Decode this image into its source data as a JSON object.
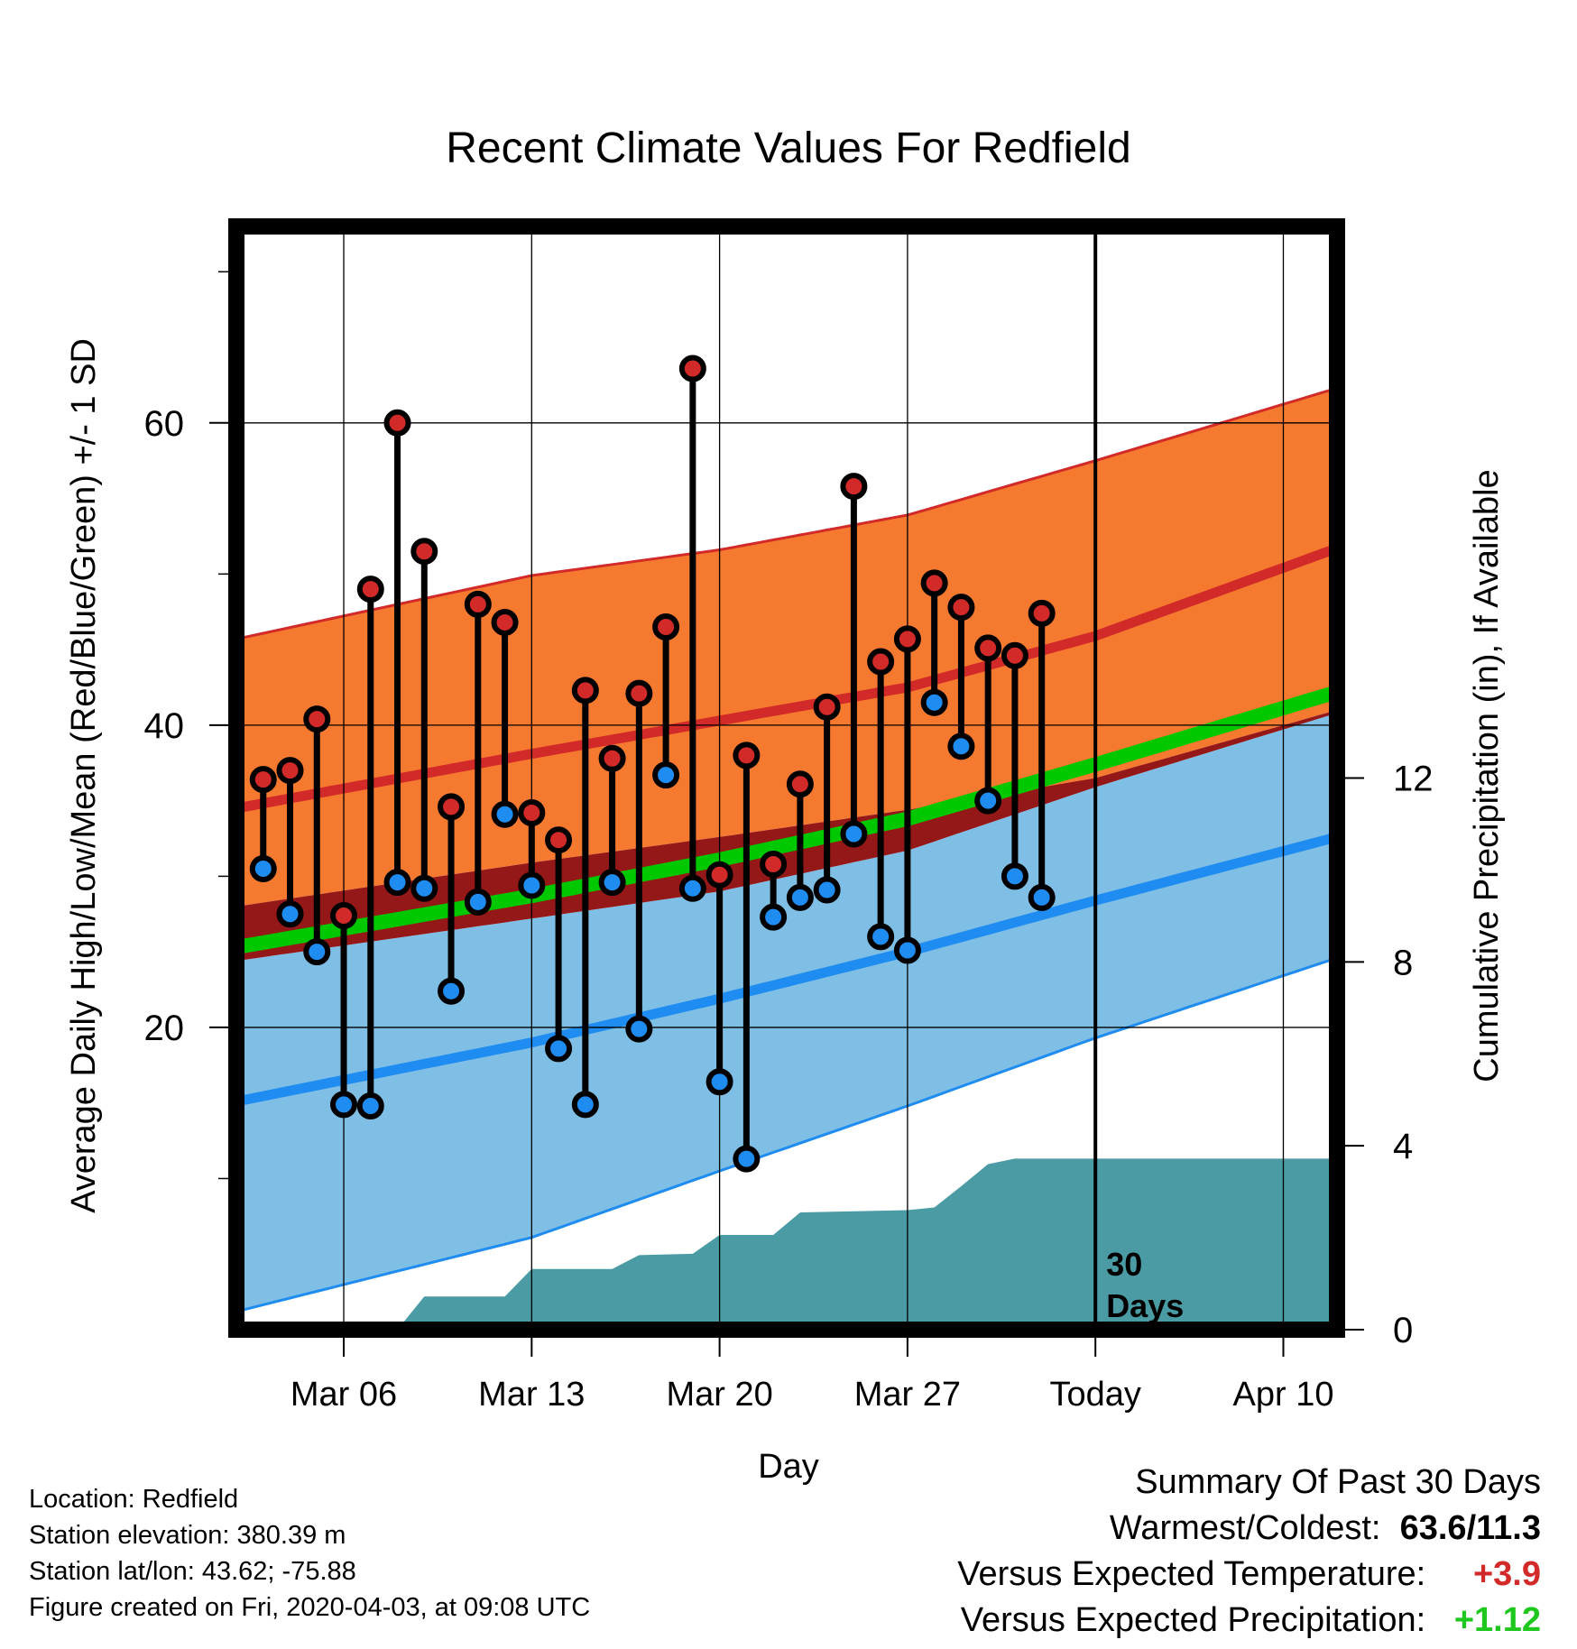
{
  "chart_data": {
    "type": "line",
    "title": "Recent Climate Values For Redfield",
    "xlabel": "Day",
    "ylabel": "Average Daily High/Low/Mean (Red/Blue/Green) +/- 1 SD",
    "y2label": "Cumulative Precipitation (in), If Available",
    "x_range": [
      "2020-03-02",
      "2020-04-12"
    ],
    "ylim": [
      0,
      73
    ],
    "y2lim": [
      0,
      24
    ],
    "x_ticks": [
      {
        "date": "2020-03-06",
        "label": "Mar 06"
      },
      {
        "date": "2020-03-13",
        "label": "Mar 13"
      },
      {
        "date": "2020-03-20",
        "label": "Mar 20"
      },
      {
        "date": "2020-03-27",
        "label": "Mar 27"
      },
      {
        "date": "2020-04-03",
        "label": "Today"
      },
      {
        "date": "2020-04-10",
        "label": "Apr 10"
      }
    ],
    "y_ticks": [
      20,
      40,
      60
    ],
    "y_minor_ticks": [
      10,
      30,
      50,
      70
    ],
    "y2_ticks": [
      0,
      4,
      8,
      12
    ],
    "grid": true,
    "today": "2020-04-03",
    "today_label": "30\nDays",
    "normal_high": {
      "dates": [
        "2020-03-02",
        "2020-03-13",
        "2020-03-20",
        "2020-03-27",
        "2020-04-03",
        "2020-04-12"
      ],
      "mean": [
        34.5,
        38.1,
        40.3,
        42.5,
        45.9,
        51.7
      ],
      "upper": [
        45.7,
        49.9,
        51.6,
        53.9,
        57.5,
        62.3
      ],
      "lower": [
        28.0,
        30.9,
        32.6,
        34.4,
        36.5,
        41.0
      ]
    },
    "normal_low": {
      "dates": [
        "2020-03-02",
        "2020-03-13",
        "2020-03-20",
        "2020-03-27",
        "2020-04-03",
        "2020-04-12"
      ],
      "mean": [
        15.1,
        19.0,
        21.9,
        25.0,
        28.4,
        32.6
      ],
      "upper": [
        24.4,
        27.2,
        29.0,
        31.7,
        35.9,
        40.8
      ],
      "lower": [
        1.2,
        6.1,
        10.5,
        14.8,
        19.3,
        24.6
      ]
    },
    "normal_mean": {
      "dates": [
        "2020-03-02",
        "2020-03-13",
        "2020-03-20",
        "2020-03-27",
        "2020-04-03",
        "2020-04-12"
      ],
      "values": [
        25.3,
        28.7,
        31.1,
        33.8,
        37.4,
        42.2
      ]
    },
    "observed": {
      "dates": [
        "2020-03-03",
        "2020-03-04",
        "2020-03-05",
        "2020-03-06",
        "2020-03-07",
        "2020-03-08",
        "2020-03-09",
        "2020-03-10",
        "2020-03-11",
        "2020-03-12",
        "2020-03-13",
        "2020-03-14",
        "2020-03-15",
        "2020-03-16",
        "2020-03-17",
        "2020-03-18",
        "2020-03-19",
        "2020-03-20",
        "2020-03-21",
        "2020-03-22",
        "2020-03-23",
        "2020-03-24",
        "2020-03-25",
        "2020-03-26",
        "2020-03-27",
        "2020-03-28",
        "2020-03-29",
        "2020-03-30",
        "2020-03-31",
        "2020-04-01",
        "2020-04-02"
      ],
      "high": [
        36.4,
        37.0,
        40.4,
        27.4,
        49.0,
        60.0,
        51.5,
        34.6,
        48.0,
        46.8,
        34.2,
        32.4,
        42.3,
        37.8,
        42.1,
        46.5,
        63.6,
        30.1,
        38.0,
        30.8,
        36.1,
        41.2,
        55.8,
        44.2,
        45.7,
        49.4,
        47.8,
        45.1,
        44.6,
        47.4,
        null
      ],
      "low": [
        30.5,
        27.5,
        25.0,
        14.9,
        14.8,
        29.6,
        29.2,
        22.4,
        28.3,
        34.1,
        29.4,
        18.6,
        14.9,
        29.6,
        19.9,
        36.7,
        29.2,
        16.4,
        11.3,
        27.3,
        28.6,
        29.1,
        32.8,
        26.0,
        25.1,
        41.5,
        38.6,
        35.0,
        30.0,
        28.6,
        null
      ]
    },
    "precipitation": {
      "dates": [
        "2020-03-08",
        "2020-03-09",
        "2020-03-12",
        "2020-03-13",
        "2020-03-16",
        "2020-03-17",
        "2020-03-19",
        "2020-03-20",
        "2020-03-22",
        "2020-03-23",
        "2020-03-27",
        "2020-03-28",
        "2020-03-29",
        "2020-03-30",
        "2020-03-31",
        "2020-04-12"
      ],
      "values": [
        0.0,
        0.72,
        0.72,
        1.32,
        1.32,
        1.62,
        1.65,
        2.06,
        2.06,
        2.55,
        2.6,
        2.66,
        3.12,
        3.6,
        3.72,
        3.72
      ]
    }
  },
  "location": "Location: Redfield",
  "elevation": "Station elevation: 380.39 m",
  "latlon": "Station lat/lon: 43.62; -75.88",
  "created": "Figure created on Fri, 2020-04-03, at 09:08 UTC",
  "summary": {
    "heading": "Summary Of Past 30 Days",
    "warmest_label": "Warmest/Coldest:",
    "warmest_value": "63.6/11.3",
    "temp_label": "Versus Expected Temperature:",
    "temp_value": "+3.9",
    "precip_label": "Versus Expected Precipitation:",
    "precip_value": "+1.12"
  },
  "colors": {
    "high_band": "#f57a30",
    "high_line": "#d22a28",
    "low_band": "#80bfe5",
    "low_line": "#1e8cf0",
    "mean_line": "#00c800",
    "overlap": "#951818",
    "precip": "#4a9ba3",
    "high_marker": "#d22a28",
    "low_marker": "#1e8cf0"
  }
}
